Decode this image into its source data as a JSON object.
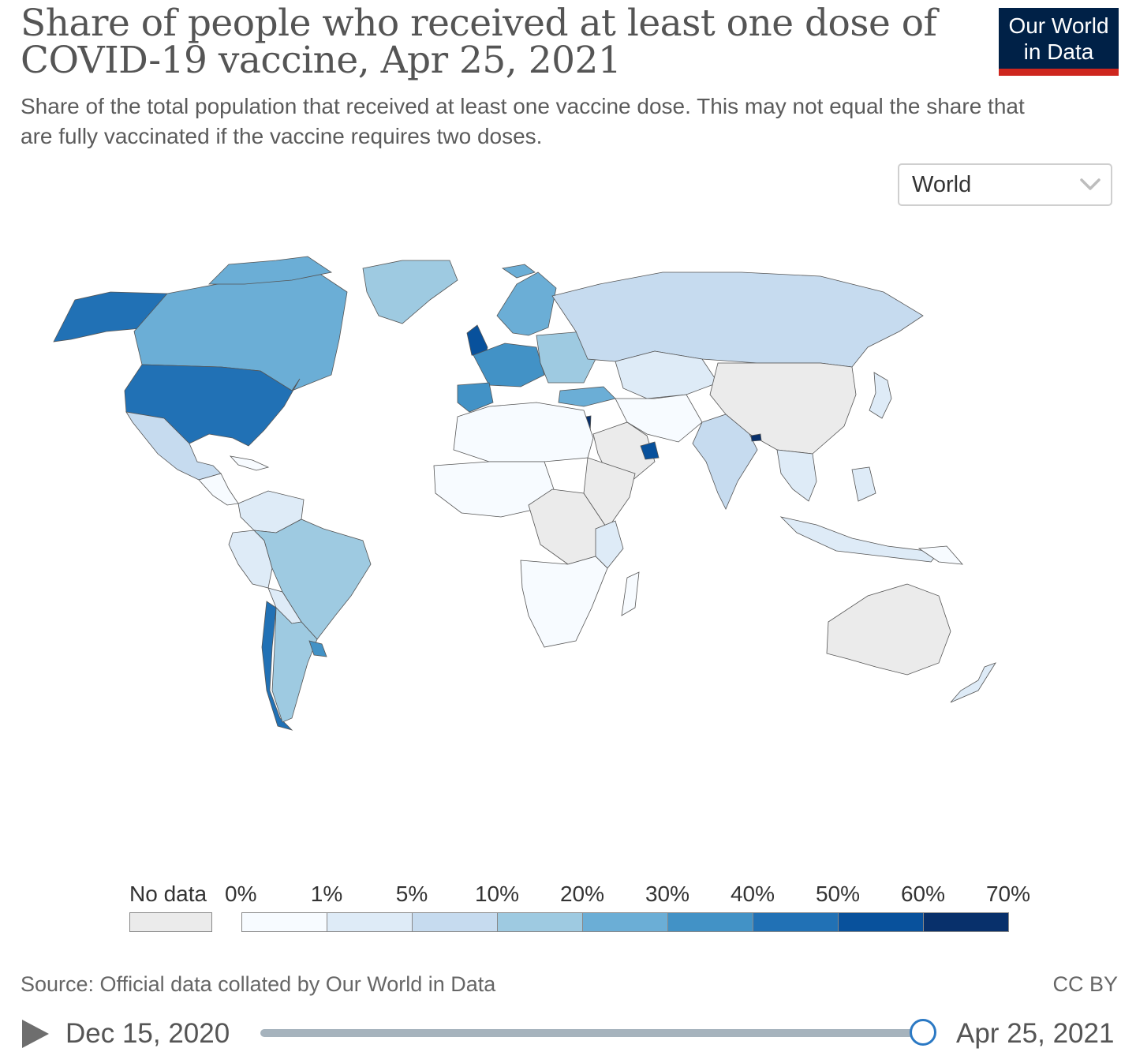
{
  "title": "Share of people who received at least one dose of COVID-19 vaccine, Apr 25, 2021",
  "subtitle": "Share of the total population that received at least one vaccine dose. This may not equal the share that are fully vaccinated if the vaccine requires two doses.",
  "logo": {
    "line1": "Our World",
    "line2": "in Data"
  },
  "region_selector": {
    "value": "World"
  },
  "colors": {
    "no_data": "#ebebeb",
    "scale": [
      "#f7fbff",
      "#deebf7",
      "#c6dbef",
      "#9ecae1",
      "#6baed6",
      "#4292c6",
      "#2171b5",
      "#08519c",
      "#08306b"
    ]
  },
  "legend": {
    "no_data_label": "No data",
    "ticks": [
      "0%",
      "1%",
      "5%",
      "10%",
      "20%",
      "30%",
      "40%",
      "50%",
      "60%",
      "70%"
    ]
  },
  "source": "Source: Official data collated by Our World in Data",
  "license": "CC BY",
  "timeline": {
    "start": "Dec 15, 2020",
    "end": "Apr 25, 2021",
    "position": 1.0
  }
}
